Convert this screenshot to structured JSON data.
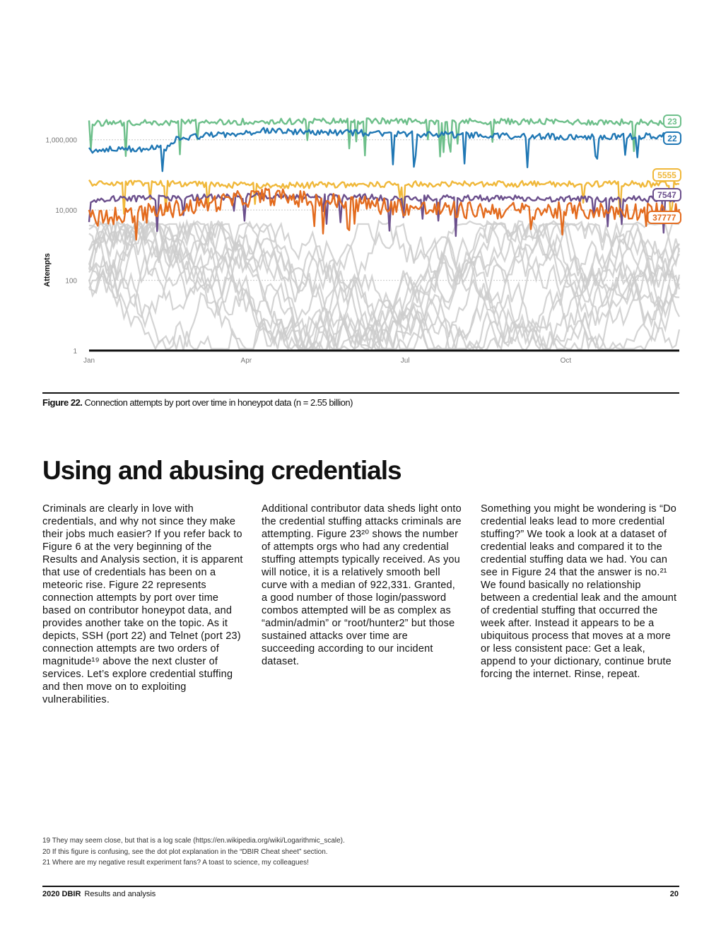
{
  "chart_data": {
    "type": "line",
    "title": "",
    "ylabel": "Attempts",
    "xlabel": "",
    "y_scale": "log",
    "ylim": [
      1,
      10000000
    ],
    "y_ticks": [
      {
        "value": 1,
        "label": "1"
      },
      {
        "value": 100,
        "label": "100"
      },
      {
        "value": 10000,
        "label": "10,000"
      },
      {
        "value": 1000000,
        "label": "1,000,000"
      }
    ],
    "x_ticks": [
      {
        "day": 0,
        "label": "Jan"
      },
      {
        "day": 90,
        "label": "Apr"
      },
      {
        "day": 181,
        "label": "Jul"
      },
      {
        "day": 273,
        "label": "Oct"
      }
    ],
    "x_range_days": [
      0,
      338
    ],
    "series": [
      {
        "name": "23",
        "color": "#6dbf8a",
        "level": 3000000,
        "pts": [
          [
            0,
            3000000
          ],
          [
            60,
            3200000
          ],
          [
            150,
            3400000
          ],
          [
            240,
            3300000
          ],
          [
            338,
            3100000
          ]
        ]
      },
      {
        "name": "22",
        "color": "#1f77b4",
        "level": 1000000,
        "pts": [
          [
            0,
            500000
          ],
          [
            45,
            600000
          ],
          [
            50,
            1100000
          ],
          [
            100,
            1800000
          ],
          [
            200,
            1400000
          ],
          [
            275,
            1200000
          ],
          [
            338,
            1300000
          ]
        ]
      },
      {
        "name": "5555",
        "color": "#f0b83a",
        "level": 55000,
        "pts": [
          [
            0,
            60000
          ],
          [
            100,
            50000
          ],
          [
            200,
            55000
          ],
          [
            338,
            55000
          ]
        ]
      },
      {
        "name": "7547",
        "color": "#6b4f8c",
        "level": 22000,
        "pts": [
          [
            0,
            20000
          ],
          [
            100,
            25000
          ],
          [
            200,
            22000
          ],
          [
            338,
            20000
          ]
        ]
      },
      {
        "name": "37777",
        "color": "#e36b1e",
        "level": 8000,
        "pts": [
          [
            0,
            6000
          ],
          [
            30,
            8000
          ],
          [
            100,
            25000
          ],
          [
            200,
            10000
          ],
          [
            338,
            9000
          ]
        ]
      }
    ],
    "background_series_color": "#cccccc",
    "background_series_note": "many other ports shown in light grey between 1 and about 10,000 attempts"
  },
  "caption": {
    "label": "Figure 22.",
    "text": "Connection attempts by port over time in honeypot data (n = 2.55 billion)"
  },
  "heading": "Using and abusing credentials",
  "columns": [
    "Criminals are clearly in love with credentials, and why not since they make their jobs much easier? If you refer back to Figure 6 at the very beginning of the Results and Analysis section, it is apparent that use of credentials has been on a meteoric rise. Figure 22 represents connection attempts by port over time based on contributor honeypot data, and provides another take on the topic. As it depicts, SSH (port 22) and Telnet (port 23) connection attempts are two orders of magnitude¹⁹ above the next cluster of services. Let’s explore credential stuffing and then move on to exploiting vulnerabilities.",
    "Additional contributor data sheds light onto the credential stuffing attacks criminals are attempting. Figure 23²⁰ shows the number of attempts orgs who had any credential stuffing attempts typically received. As you will notice, it is a relatively smooth bell curve with a median of 922,331. Granted, a good number of those login/password combos attempted will be as complex as “admin/admin” or “root/hunter2” but those sustained attacks over time are succeeding according to our incident dataset.",
    "Something you might be wondering is “Do credential leaks lead to more credential stuffing?” We took a look at a dataset of credential leaks and compared it to the credential stuffing data we had. You can see in Figure 24 that the answer is no.²¹ We found basically no relationship between a credential leak and the amount of credential stuffing that occurred the week after. Instead it appears to be a ubiquitous process that moves at a more or less consistent pace: Get a leak, append to your dictionary, continue brute forcing the internet. Rinse, repeat."
  ],
  "footnotes": [
    "19  They may seem close, but that is a log scale (https://en.wikipedia.org/wiki/Logarithmic_scale).",
    "20 If this figure is confusing, see the dot plot explanation in the “DBIR Cheat sheet” section.",
    "21  Where are my negative result experiment fans? A toast to science, my colleagues!"
  ],
  "footer": {
    "brand": "2020 DBIR",
    "section": "Results and analysis",
    "page": "20"
  }
}
